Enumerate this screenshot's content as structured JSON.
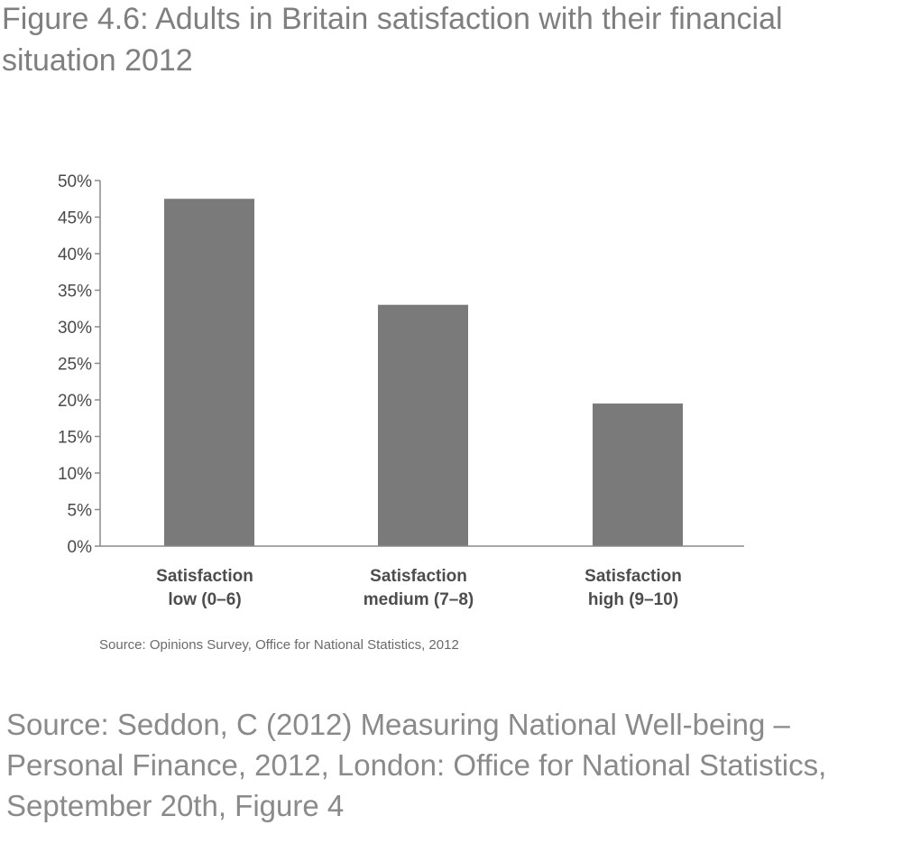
{
  "figure_title": "Figure 4.6:  Adults in Britain satisfaction with their financial situation 2012",
  "chart_source": "Source: Opinions Survey, Office for National Statistics, 2012",
  "citation": "Source: Seddon, C (2012) Measuring National Well-being – Personal Finance, 2012, London: Office for National Statistics, September 20th, Figure 4",
  "colors": {
    "bar": "#7a7a7a",
    "axis": "#8a8a8a"
  },
  "chart_data": {
    "type": "bar",
    "title": "",
    "xlabel": "",
    "ylabel": "",
    "categories": [
      [
        "Satisfaction",
        "low (0–6)"
      ],
      [
        "Satisfaction",
        "medium (7–8)"
      ],
      [
        "Satisfaction",
        "high (9–10)"
      ]
    ],
    "values": [
      47.5,
      33,
      19.5
    ],
    "ylim": [
      0,
      50
    ],
    "yticks": [
      "0%",
      "5%",
      "10%",
      "15%",
      "20%",
      "25%",
      "30%",
      "35%",
      "40%",
      "45%",
      "50%"
    ],
    "grid": false,
    "legend": "none"
  }
}
